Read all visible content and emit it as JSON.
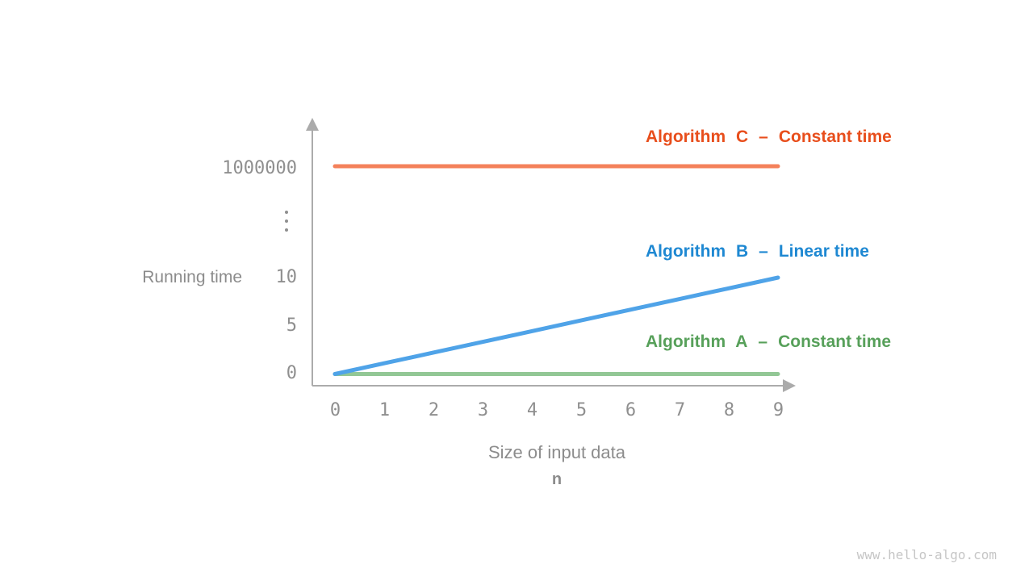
{
  "page": {
    "watermark": "www.hello-algo.com"
  },
  "chart_data": {
    "type": "line",
    "title": "",
    "xlabel": "Size of input data",
    "xlabel_symbol": "n",
    "ylabel": "Running time",
    "x_ticks": [
      "0",
      "1",
      "2",
      "3",
      "4",
      "5",
      "6",
      "7",
      "8",
      "9"
    ],
    "y_ticks": [
      "1000000",
      "⋮",
      "10",
      "5",
      "0"
    ],
    "y_axis_break": true,
    "xlim": [
      0,
      9
    ],
    "grid": false,
    "legend_position": "right-inline",
    "axis_color": "#ababab",
    "x": [
      0,
      1,
      2,
      3,
      4,
      5,
      6,
      7,
      8,
      9
    ],
    "series": [
      {
        "name": "Algorithm C",
        "separator": "–",
        "label": "Constant time",
        "text_color": "#e84e1c",
        "line_color": "#f4815b",
        "values": [
          1000000,
          1000000,
          1000000,
          1000000,
          1000000,
          1000000,
          1000000,
          1000000,
          1000000,
          1000000
        ]
      },
      {
        "name": "Algorithm B",
        "separator": "–",
        "label": "Linear time",
        "text_color": "#1e88d2",
        "line_color": "#4fa3e8",
        "values": [
          0,
          1.11,
          2.22,
          3.33,
          4.44,
          5.56,
          6.67,
          7.78,
          8.89,
          10
        ]
      },
      {
        "name": "Algorithm A",
        "separator": "–",
        "label": "Constant time",
        "text_color": "#57a05a",
        "line_color": "#92c795",
        "values": [
          0,
          0,
          0,
          0,
          0,
          0,
          0,
          0,
          0,
          0
        ]
      }
    ]
  }
}
